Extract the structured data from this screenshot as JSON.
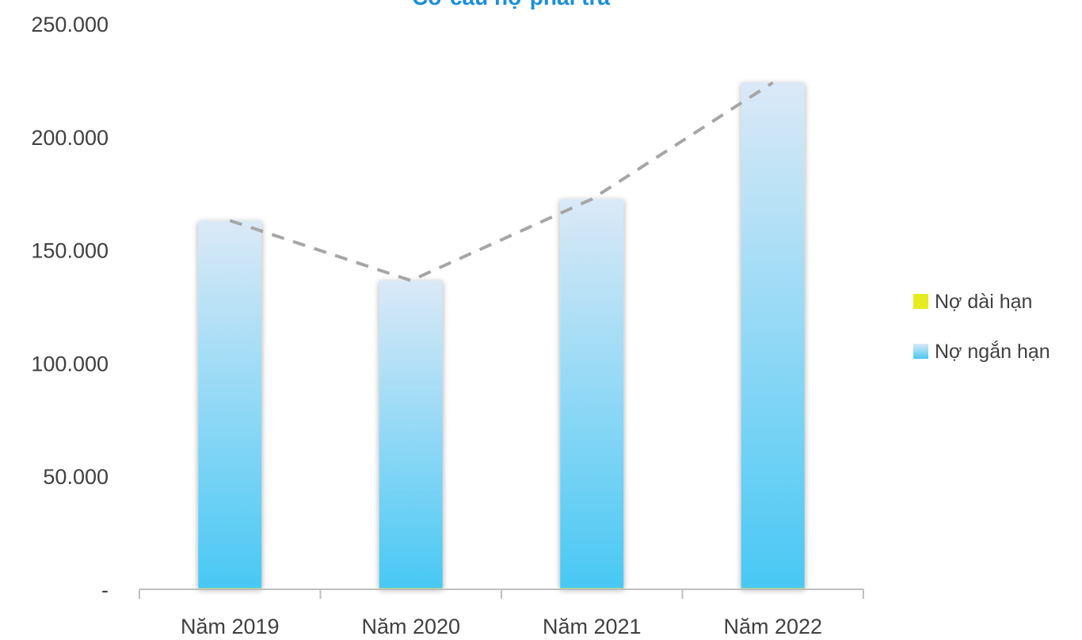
{
  "colors": {
    "title": "#1a8fd6",
    "axis": "#bfbfbf",
    "text": "#404040",
    "bar_top": "#dbe9f7",
    "bar_bottom": "#48c8f4",
    "trend_line": "#a6a6a6",
    "long_term": "#e6ec1e",
    "short_term": "#48c8f4"
  },
  "chart_data": {
    "type": "bar",
    "title": "Cơ cấu nợ phải trả",
    "xlabel": "",
    "ylabel": "",
    "categories": [
      "Năm 2019",
      "Năm 2020",
      "Năm 2021",
      "Năm 2022"
    ],
    "y_tick_labels": [
      "-",
      "50.000",
      "100.000",
      "150.000",
      "200.000",
      "250.000"
    ],
    "y_tick_values": [
      0,
      50000,
      100000,
      150000,
      200000,
      250000
    ],
    "ylim": [
      0,
      250000
    ],
    "grid": false,
    "stacked": true,
    "legend_position": "right",
    "series": [
      {
        "name": "Nợ dài hạn",
        "values": [
          500,
          500,
          500,
          500
        ]
      },
      {
        "name": "Nợ ngắn hạn",
        "values": [
          162500,
          136000,
          172000,
          223500
        ]
      }
    ],
    "trend_line": {
      "style": "dashed",
      "values": [
        163000,
        136500,
        172500,
        224000
      ]
    }
  }
}
